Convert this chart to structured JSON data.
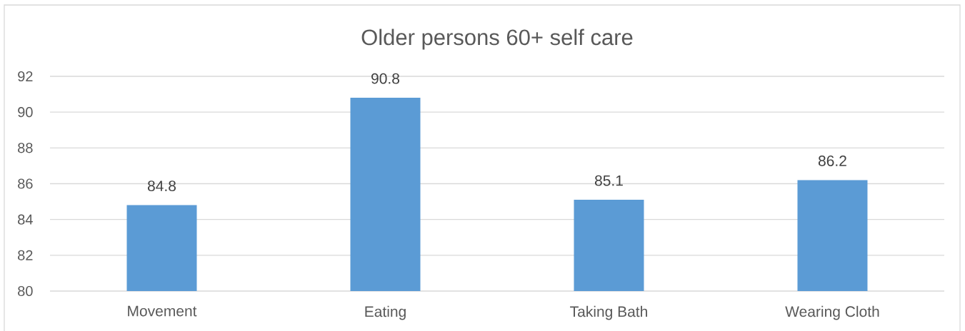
{
  "chart_data": {
    "type": "bar",
    "title": "Older persons 60+ self care",
    "categories": [
      "Movement",
      "Eating",
      "Taking Bath",
      "Wearing Cloth"
    ],
    "values": [
      84.8,
      90.8,
      85.1,
      86.2
    ],
    "color": "#5b9bd5",
    "ylim": [
      80,
      92
    ],
    "yticks": [
      80,
      82,
      84,
      86,
      88,
      90,
      92
    ],
    "grid": "y",
    "data_labels": true
  }
}
